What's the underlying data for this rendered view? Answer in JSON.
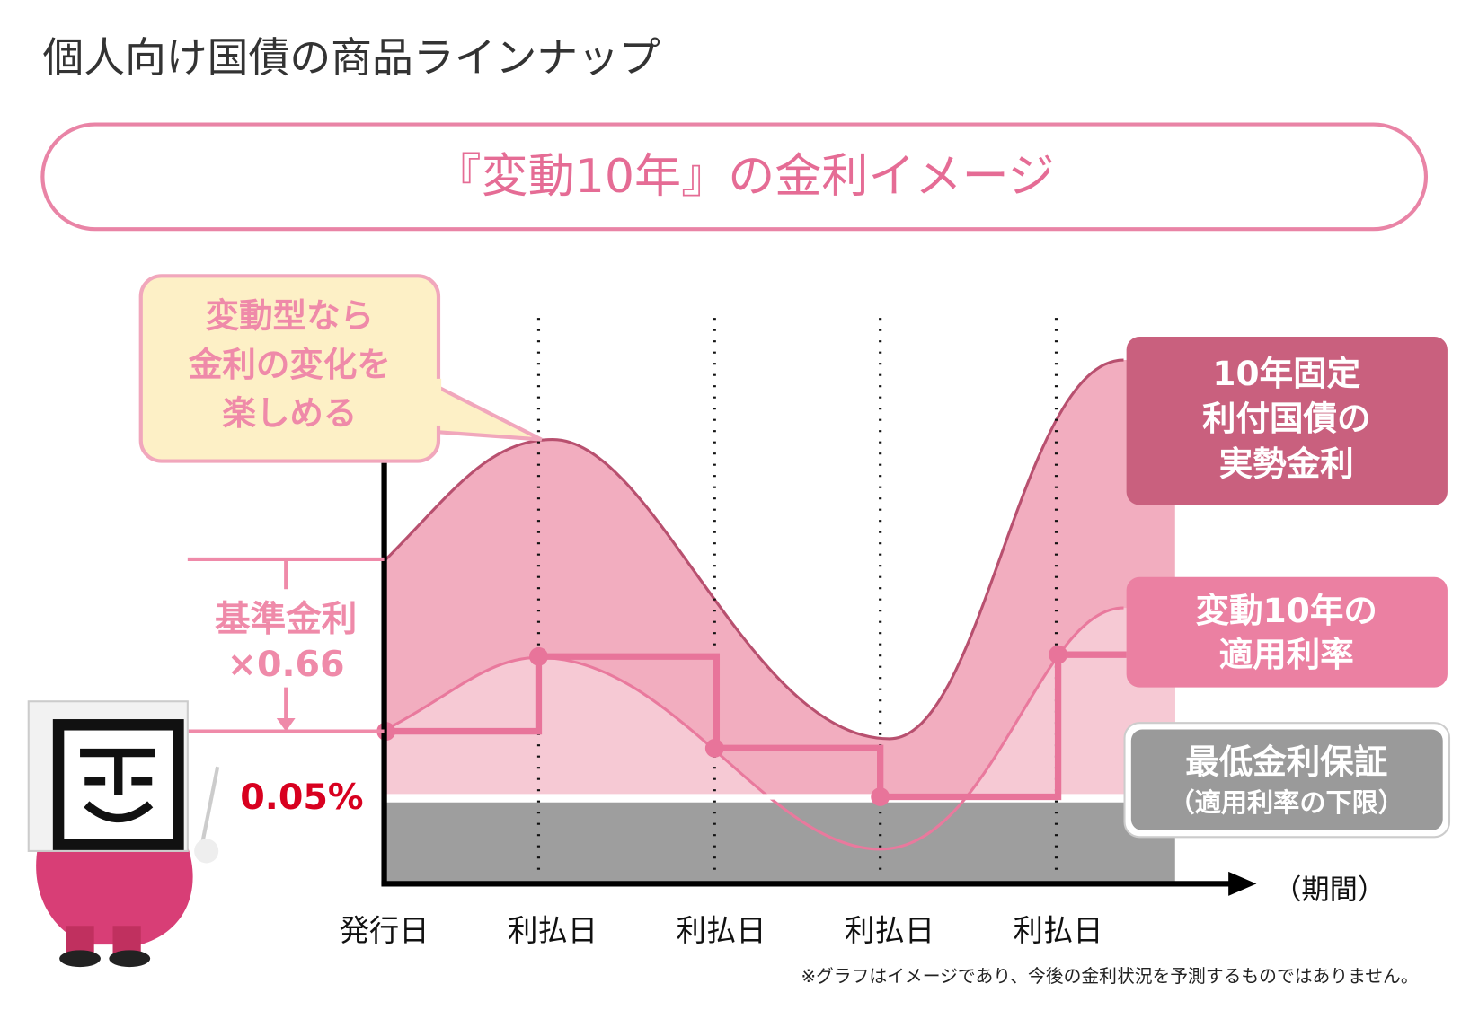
{
  "header": {
    "title": "個人向け国債の商品ラインナップ"
  },
  "banner": {
    "title": "『変動10年』の金利イメージ"
  },
  "callout": {
    "lines": [
      "変動型なら",
      "金利の変化を",
      "楽しめる"
    ]
  },
  "base_rate": {
    "lines": [
      "基準金利",
      "×0.66"
    ]
  },
  "minimum_rate": "0.05%",
  "legend": {
    "fixed": [
      "10年固定",
      "利付国債の",
      "実勢金利"
    ],
    "floating": [
      "変動10年の",
      "適用利率"
    ],
    "floor": [
      "最低金利保証",
      "（適用利率の下限）"
    ]
  },
  "x_axis": {
    "labels": [
      "発行日",
      "利払日",
      "利払日",
      "利払日",
      "利払日"
    ],
    "unit": "（期間）"
  },
  "footnote": "※グラフはイメージであり、今後の金利状況を予測するものではありません。"
}
